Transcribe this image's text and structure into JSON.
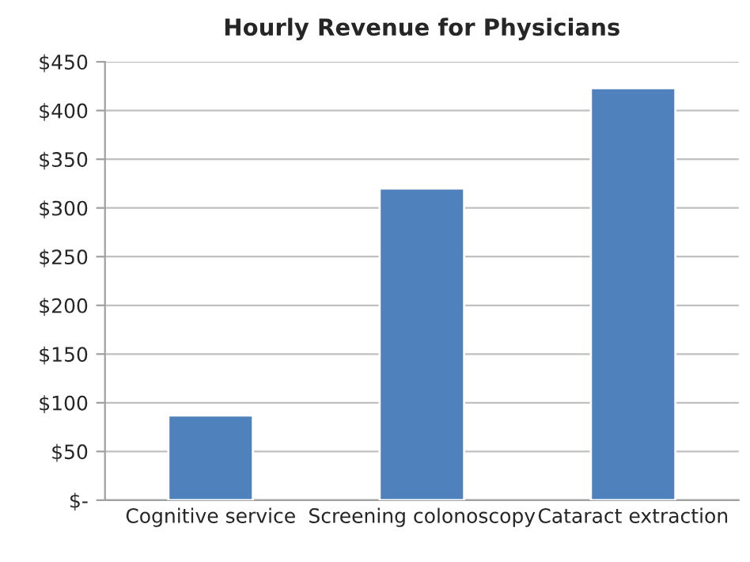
{
  "chart_data": {
    "type": "bar",
    "title": "Hourly Revenue for Physicians",
    "categories": [
      "Cognitive service",
      "Screening colonoscopy",
      "Cataract extraction"
    ],
    "values": [
      87,
      320,
      423
    ],
    "color": "#4f81bd",
    "ylim": [
      0,
      450
    ],
    "yticks": [
      {
        "value": 0,
        "label": "$-"
      },
      {
        "value": 50,
        "label": "$50"
      },
      {
        "value": 100,
        "label": "$100"
      },
      {
        "value": 150,
        "label": "$150"
      },
      {
        "value": 200,
        "label": "$200"
      },
      {
        "value": 250,
        "label": "$250"
      },
      {
        "value": 300,
        "label": "$300"
      },
      {
        "value": 350,
        "label": "$350"
      },
      {
        "value": 400,
        "label": "$400"
      },
      {
        "value": 450,
        "label": "$450"
      }
    ],
    "grid": "y"
  }
}
